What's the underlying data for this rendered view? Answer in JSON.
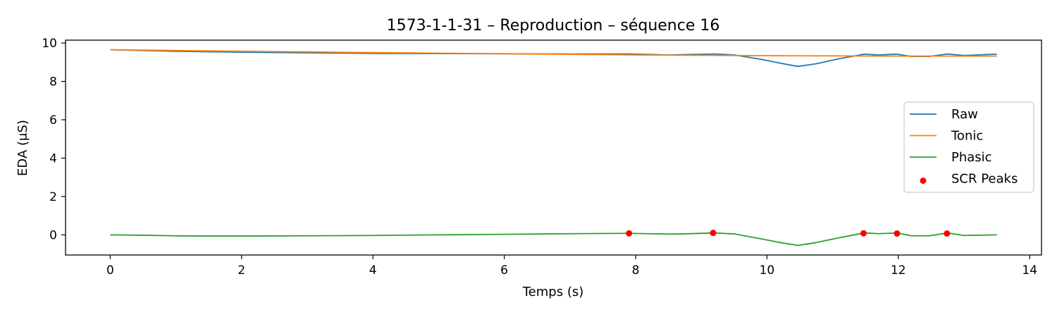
{
  "chart_data": {
    "type": "line",
    "title": "1573-1-1-31 – Reproduction – séquence 16",
    "xlabel": "Temps (s)",
    "ylabel": "EDA (μS)",
    "xlim": [
      -0.68,
      14.18
    ],
    "ylim": [
      -1.05,
      10.15
    ],
    "xticks": [
      0,
      2,
      4,
      6,
      8,
      10,
      12,
      14
    ],
    "yticks": [
      0,
      2,
      4,
      6,
      8,
      10
    ],
    "grid": false,
    "legend_position": "center-right",
    "series": [
      {
        "name": "Raw",
        "kind": "line",
        "color": "#1f77b4",
        "x": [
          0,
          1,
          2,
          3,
          4,
          5,
          6,
          7,
          7.9,
          8.5,
          9.2,
          9.5,
          9.9,
          10.2,
          10.47,
          10.75,
          11.1,
          11.48,
          11.7,
          11.98,
          12.2,
          12.47,
          12.75,
          13.0,
          13.2,
          13.5
        ],
        "values": [
          9.65,
          9.57,
          9.52,
          9.49,
          9.46,
          9.45,
          9.44,
          9.43,
          9.43,
          9.38,
          9.43,
          9.38,
          9.16,
          8.95,
          8.78,
          8.92,
          9.18,
          9.42,
          9.38,
          9.42,
          9.3,
          9.3,
          9.43,
          9.35,
          9.38,
          9.42
        ]
      },
      {
        "name": "Tonic",
        "kind": "line",
        "color": "#ff7f0e",
        "x": [
          0,
          1,
          2,
          3,
          4,
          5,
          6,
          7,
          8,
          9,
          10,
          11,
          12,
          13,
          13.5
        ],
        "values": [
          9.65,
          9.61,
          9.57,
          9.54,
          9.5,
          9.47,
          9.44,
          9.41,
          9.38,
          9.36,
          9.34,
          9.33,
          9.32,
          9.32,
          9.32
        ]
      },
      {
        "name": "Phasic",
        "kind": "line",
        "color": "#2ca02c",
        "x": [
          0,
          0.5,
          1,
          1.5,
          2,
          3,
          4,
          5,
          6,
          7,
          7.9,
          8.2,
          8.5,
          8.7,
          9.2,
          9.5,
          9.9,
          10.2,
          10.47,
          10.75,
          11.1,
          11.48,
          11.7,
          11.98,
          12.2,
          12.47,
          12.75,
          13.0,
          13.2,
          13.5
        ],
        "values": [
          0.0,
          -0.02,
          -0.05,
          -0.06,
          -0.06,
          -0.05,
          -0.03,
          0.0,
          0.03,
          0.06,
          0.08,
          0.06,
          0.04,
          0.05,
          0.1,
          0.05,
          -0.2,
          -0.4,
          -0.55,
          -0.4,
          -0.15,
          0.1,
          0.06,
          0.1,
          -0.05,
          -0.05,
          0.1,
          -0.03,
          -0.02,
          0.0
        ]
      },
      {
        "name": "SCR Peaks",
        "kind": "scatter",
        "color": "#ff0000",
        "x": [
          7.9,
          9.18,
          11.47,
          11.98,
          12.74
        ],
        "values": [
          0.08,
          0.1,
          0.08,
          0.07,
          0.07
        ]
      }
    ]
  }
}
